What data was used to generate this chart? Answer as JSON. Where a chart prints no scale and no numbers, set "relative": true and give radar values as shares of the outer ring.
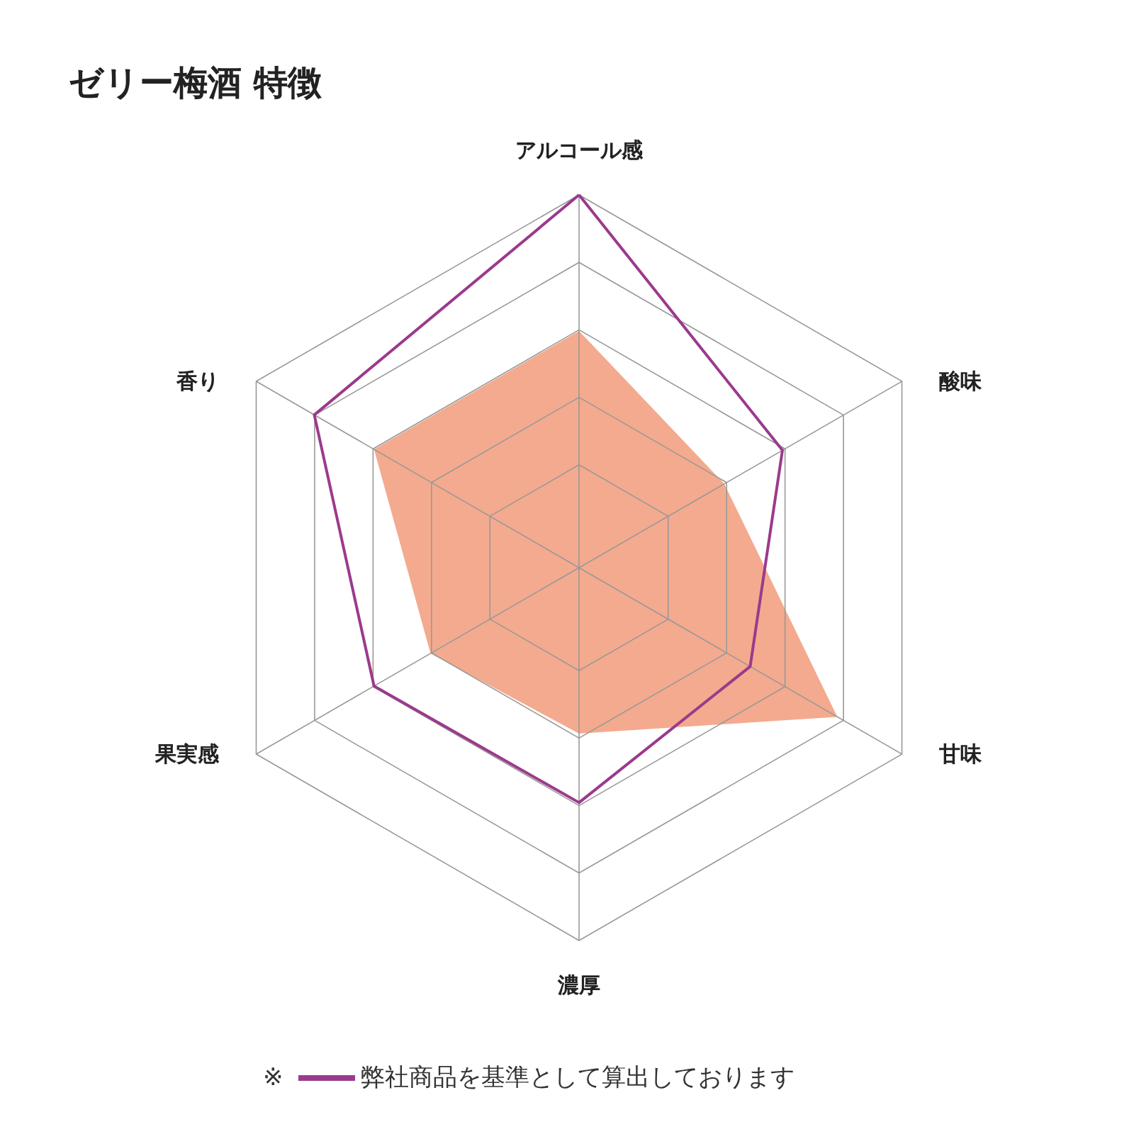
{
  "chart_data": {
    "type": "radar",
    "title": "ゼリー梅酒 特徴",
    "relative": true,
    "categories": [
      "アルコール感",
      "酸味",
      "甘味",
      "濃厚",
      "果実感",
      "香り"
    ],
    "series": [
      {
        "color": "#f4aa8e",
        "values": [
          0.635,
          0.45,
          0.8,
          0.445,
          0.46,
          0.635
        ]
      },
      {
        "name": "弊社商品を基準として算出しております",
        "color": "#9b3a8c",
        "values": [
          1.0,
          0.63,
          0.53,
          0.63,
          0.635,
          0.82
        ]
      }
    ],
    "legend": "bottom",
    "annotations": [
      "※"
    ]
  }
}
